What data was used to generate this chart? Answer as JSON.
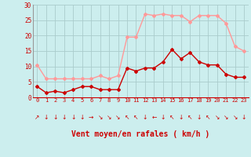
{
  "hours": [
    0,
    1,
    2,
    3,
    4,
    5,
    6,
    7,
    8,
    9,
    10,
    11,
    12,
    13,
    14,
    15,
    16,
    17,
    18,
    19,
    20,
    21,
    22,
    23
  ],
  "wind_avg": [
    3.5,
    1.5,
    2.0,
    1.5,
    2.5,
    3.5,
    3.5,
    2.5,
    2.5,
    2.5,
    9.5,
    8.5,
    9.5,
    9.5,
    11.5,
    15.5,
    12.5,
    14.5,
    11.5,
    10.5,
    10.5,
    7.5,
    6.5,
    6.5
  ],
  "wind_gust": [
    10.5,
    6.0,
    6.0,
    6.0,
    6.0,
    6.0,
    6.0,
    7.0,
    6.0,
    7.0,
    19.5,
    19.5,
    27.0,
    26.5,
    27.0,
    26.5,
    26.5,
    24.5,
    26.5,
    26.5,
    26.5,
    24.0,
    16.5,
    15.0
  ],
  "wind_dir_symbols": [
    "↗",
    "↓",
    "↓",
    "↓",
    "↓",
    "↓",
    "→",
    "↘",
    "↘",
    "↘",
    "↖",
    "↖",
    "↓",
    "←",
    "↓",
    "↖",
    "↓",
    "↖",
    "↓",
    "↖",
    "↘",
    "↘",
    "↘",
    "↓"
  ],
  "avg_color": "#cc0000",
  "gust_color": "#ff9999",
  "bg_color": "#cceeee",
  "grid_color": "#aacccc",
  "xlabel": "Vent moyen/en rafales ( km/h )",
  "xlabel_color": "#cc0000",
  "ylim": [
    0,
    30
  ],
  "yticks": [
    0,
    5,
    10,
    15,
    20,
    25,
    30
  ],
  "xlim": [
    -0.5,
    23.5
  ],
  "marker": "D",
  "markersize": 2,
  "linewidth": 1.0
}
